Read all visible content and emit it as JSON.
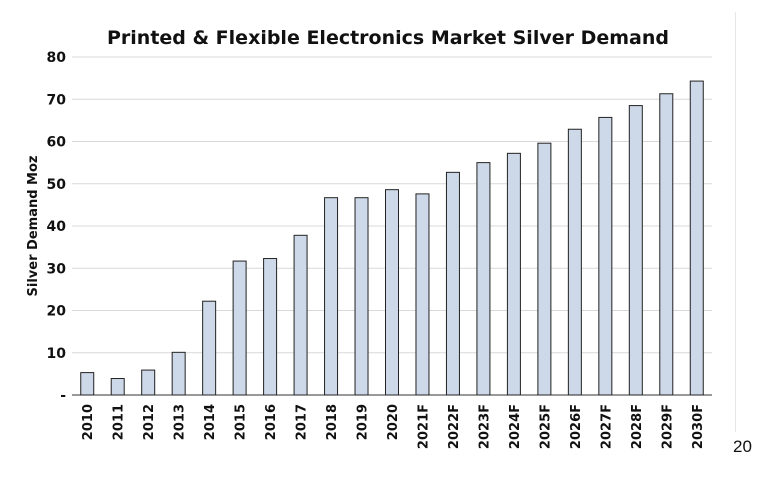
{
  "page_number": "20",
  "chart_data": {
    "type": "bar",
    "title": "Printed & Flexible Electronics Market  Silver Demand",
    "xlabel": "",
    "ylabel": "Silver Demand Moz",
    "ylim": [
      0,
      80
    ],
    "yticks": [
      0,
      10,
      20,
      30,
      40,
      50,
      60,
      70,
      80
    ],
    "ytick_labels": [
      "-",
      "10",
      "20",
      "30",
      "40",
      "50",
      "60",
      "70",
      "80"
    ],
    "grid": true,
    "legend": "none",
    "bar_color": "#cdd8e8",
    "bar_edge_color": "#222222",
    "categories": [
      "2010",
      "2011",
      "2012",
      "2013",
      "2014",
      "2015",
      "2016",
      "2017",
      "2018",
      "2019",
      "2020",
      "2021F",
      "2022F",
      "2023F",
      "2024F",
      "2025F",
      "2026F",
      "2027F",
      "2028F",
      "2029F",
      "2030F"
    ],
    "values": [
      5.3,
      3.9,
      5.9,
      10.1,
      22.2,
      31.7,
      32.3,
      37.8,
      46.7,
      46.7,
      48.6,
      47.6,
      52.7,
      55.0,
      57.2,
      59.6,
      62.9,
      65.7,
      68.5,
      71.3,
      74.3
    ]
  }
}
